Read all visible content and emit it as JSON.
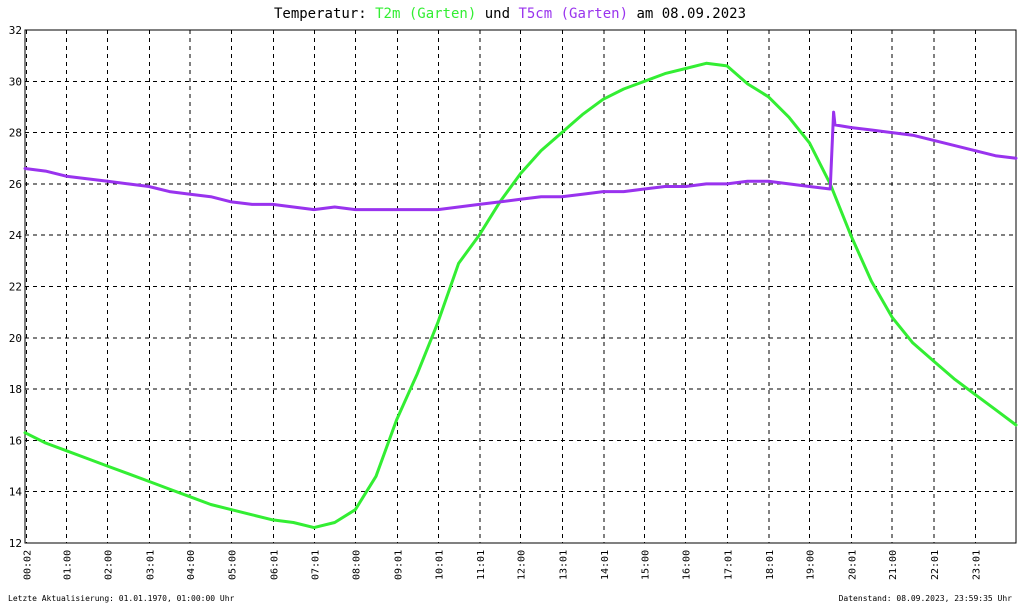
{
  "title": {
    "prefix": "Temperatur: ",
    "series1": "T2m (Garten)",
    "mid": " und ",
    "series2": "T5cm (Garten)",
    "suffix": " am 08.09.2023"
  },
  "footer": {
    "left": "Letzte Aktualisierung: 01.01.1970, 01:00:00 Uhr",
    "right": "Datenstand: 08.09.2023, 23:59:35 Uhr"
  },
  "colors": {
    "t2m": "#33ee33",
    "t5cm": "#9933ee",
    "grid": "#000000",
    "background": "#ffffff"
  },
  "chart_data": {
    "type": "line",
    "ylim": [
      12,
      32
    ],
    "xlim": [
      "00:00",
      "24:00"
    ],
    "y_ticks": [
      "12",
      "14",
      "16",
      "18",
      "20",
      "22",
      "24",
      "26",
      "28",
      "30",
      "32"
    ],
    "x_ticks": [
      "00:02",
      "01:00",
      "02:00",
      "03:01",
      "04:00",
      "05:00",
      "06:01",
      "07:01",
      "08:00",
      "09:01",
      "10:01",
      "11:01",
      "12:00",
      "13:01",
      "14:01",
      "15:00",
      "16:00",
      "17:01",
      "18:01",
      "19:00",
      "20:01",
      "21:00",
      "22:01",
      "23:01"
    ],
    "grid": true,
    "series": [
      {
        "name": "T2m (Garten)",
        "color": "#33ee33",
        "x": [
          "00:00",
          "00:30",
          "01:00",
          "01:30",
          "02:00",
          "02:30",
          "03:00",
          "03:30",
          "04:00",
          "04:30",
          "05:00",
          "05:30",
          "06:00",
          "06:30",
          "07:00",
          "07:30",
          "08:00",
          "08:30",
          "09:00",
          "09:30",
          "10:00",
          "10:30",
          "11:00",
          "11:30",
          "12:00",
          "12:30",
          "13:00",
          "13:30",
          "14:00",
          "14:30",
          "15:00",
          "15:30",
          "16:00",
          "16:30",
          "17:00",
          "17:30",
          "18:00",
          "18:30",
          "19:00",
          "19:30",
          "20:00",
          "20:30",
          "21:00",
          "21:30",
          "22:00",
          "22:30",
          "23:00",
          "23:30",
          "24:00"
        ],
        "y": [
          16.3,
          15.9,
          15.6,
          15.3,
          15.0,
          14.7,
          14.4,
          14.1,
          13.8,
          13.5,
          13.3,
          13.1,
          12.9,
          12.8,
          12.6,
          12.8,
          13.3,
          14.6,
          16.8,
          18.6,
          20.6,
          22.9,
          24.0,
          25.3,
          26.4,
          27.3,
          28.0,
          28.7,
          29.3,
          29.7,
          30.0,
          30.3,
          30.5,
          30.7,
          30.6,
          29.9,
          29.4,
          28.6,
          27.6,
          26.0,
          24.0,
          22.2,
          20.8,
          19.8,
          19.1,
          18.4,
          17.8,
          17.2,
          16.6
        ]
      },
      {
        "name": "T5cm (Garten)",
        "color": "#9933ee",
        "x": [
          "00:00",
          "00:30",
          "01:00",
          "01:30",
          "02:00",
          "02:30",
          "03:00",
          "03:30",
          "04:00",
          "04:30",
          "05:00",
          "05:30",
          "06:00",
          "06:30",
          "07:00",
          "07:30",
          "08:00",
          "08:30",
          "09:00",
          "09:30",
          "10:00",
          "10:30",
          "11:00",
          "11:30",
          "12:00",
          "12:30",
          "13:00",
          "13:30",
          "14:00",
          "14:30",
          "15:00",
          "15:30",
          "16:00",
          "16:30",
          "17:00",
          "17:30",
          "18:00",
          "18:30",
          "19:00",
          "19:30",
          "19:35",
          "19:37",
          "20:00",
          "20:30",
          "21:00",
          "21:30",
          "22:00",
          "22:30",
          "23:00",
          "23:30",
          "24:00"
        ],
        "y": [
          26.6,
          26.5,
          26.3,
          26.2,
          26.1,
          26.0,
          25.9,
          25.7,
          25.6,
          25.5,
          25.3,
          25.2,
          25.2,
          25.1,
          25.0,
          25.1,
          25.0,
          25.0,
          25.0,
          25.0,
          25.0,
          25.1,
          25.2,
          25.3,
          25.4,
          25.5,
          25.5,
          25.6,
          25.7,
          25.7,
          25.8,
          25.9,
          25.9,
          26.0,
          26.0,
          26.1,
          26.1,
          26.0,
          25.9,
          25.8,
          28.8,
          28.3,
          28.2,
          28.1,
          28.0,
          27.9,
          27.7,
          27.5,
          27.3,
          27.1,
          27.0
        ]
      }
    ]
  }
}
